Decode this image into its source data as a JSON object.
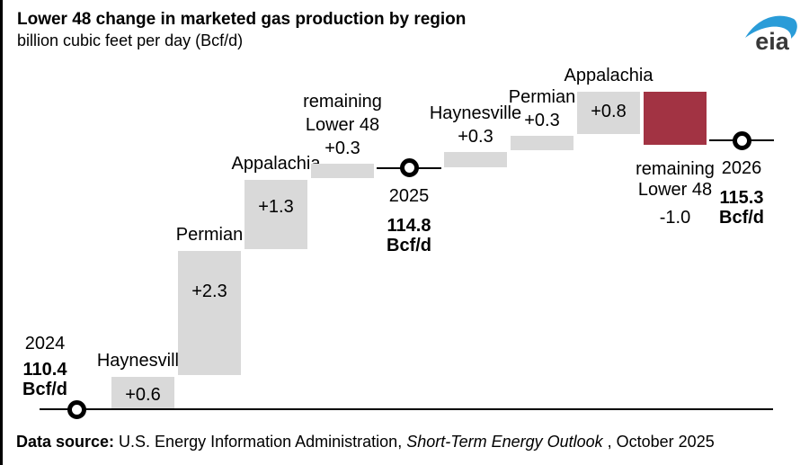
{
  "header": {
    "title": "Lower 48 change in marketed gas production by region",
    "subtitle": "billion cubic feet per day (Bcf/d)"
  },
  "logo": {
    "text": "eia",
    "swoosh_color": "#2a9cd8",
    "text_color": "#383838"
  },
  "footer": {
    "label": "Data source:",
    "agency": " U.S. Energy Information Administration, ",
    "publication": "Short-Term Energy Outlook",
    "suffix": " , October 2025"
  },
  "chart_data": {
    "type": "waterfall",
    "title": "Lower 48 change in marketed gas production by region",
    "ylabel": "billion cubic feet per day (Bcf/d)",
    "unit": "Bcf/d",
    "grid": false,
    "legend": false,
    "colors": {
      "increase": "#d9d9d9",
      "decrease": "#a23343",
      "marker_fill": "#ffffff",
      "marker_stroke": "#000000",
      "line": "#000000"
    },
    "anchors": [
      {
        "year": "2024",
        "value": 110.4
      },
      {
        "year": "2025",
        "value": 114.8
      },
      {
        "year": "2026",
        "value": 115.3
      }
    ],
    "columns": [
      {
        "kind": "anchor",
        "year": "2024",
        "value": 110.4,
        "value_label": "110.4",
        "unit_label": "Bcf/d",
        "label_placement": "left",
        "line": "full"
      },
      {
        "kind": "bar",
        "name_lines": [
          "Haynesville"
        ],
        "delta": 0.6,
        "delta_label": "+0.6",
        "bar": "increase",
        "value_placement": "inside"
      },
      {
        "kind": "bar",
        "name_lines": [
          "Permian"
        ],
        "delta": 2.3,
        "delta_label": "+2.3",
        "bar": "increase",
        "value_placement": "inside"
      },
      {
        "kind": "bar",
        "name_lines": [
          "Appalachia"
        ],
        "delta": 1.3,
        "delta_label": "+1.3",
        "bar": "increase",
        "value_placement": "inside"
      },
      {
        "kind": "bar",
        "name_lines": [
          "remaining",
          "Lower 48"
        ],
        "delta": 0.3,
        "delta_label": "+0.3",
        "bar": "increase",
        "value_placement": "above"
      },
      {
        "kind": "anchor",
        "year": "2025",
        "value": 114.8,
        "value_label": "114.8",
        "unit_label": "Bcf/d",
        "label_placement": "below",
        "line": "column"
      },
      {
        "kind": "bar",
        "name_lines": [
          "Haynesville"
        ],
        "delta": 0.3,
        "delta_label": "+0.3",
        "bar": "increase",
        "value_placement": "above"
      },
      {
        "kind": "bar",
        "name_lines": [
          "Permian"
        ],
        "delta": 0.3,
        "delta_label": "+0.3",
        "bar": "increase",
        "value_placement": "above"
      },
      {
        "kind": "bar",
        "name_lines": [
          "Appalachia"
        ],
        "delta": 0.8,
        "delta_label": "+0.8",
        "bar": "increase",
        "value_placement": "inside"
      },
      {
        "kind": "bar",
        "name_lines": [
          "remaining",
          "Lower 48"
        ],
        "delta": -1.0,
        "delta_label": "-1.0",
        "bar": "decrease",
        "value_placement": "below"
      },
      {
        "kind": "anchor",
        "year": "2026",
        "value": 115.3,
        "value_label": "115.3",
        "unit_label": "Bcf/d",
        "label_placement": "below",
        "line": "column"
      }
    ]
  }
}
